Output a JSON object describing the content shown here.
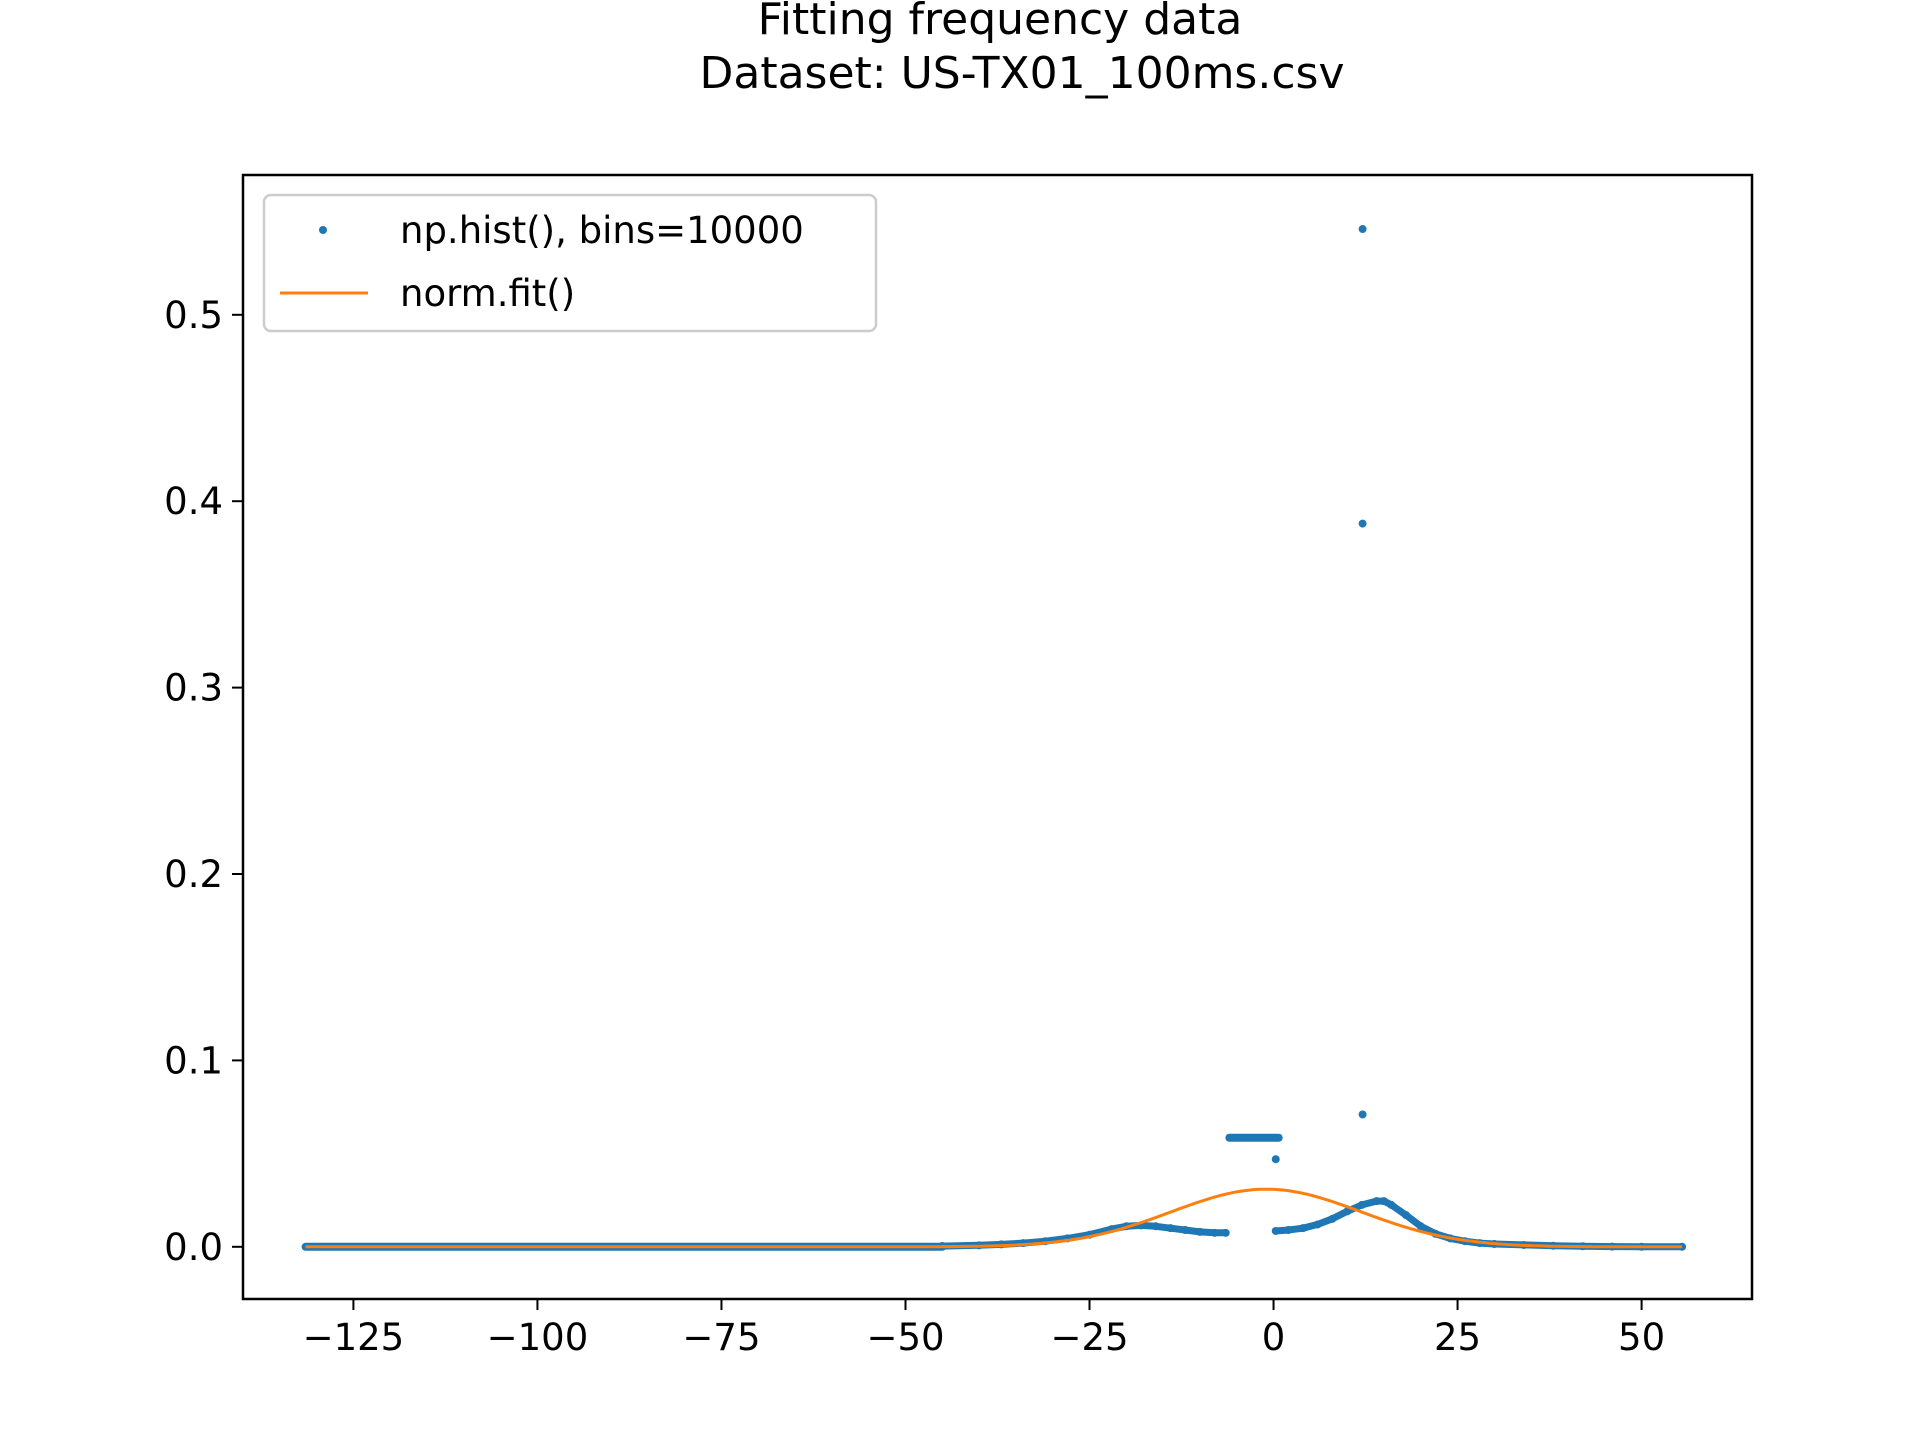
{
  "chart_data": {
    "type": "scatter",
    "title": "Fitting frequency data",
    "subtitle": "Dataset: US-TX01_100ms.csv",
    "xlabel": "",
    "ylabel": "",
    "xlim": [
      -140,
      65
    ],
    "ylim": [
      -0.028,
      0.575
    ],
    "x_ticks": [
      -125,
      -100,
      -75,
      -50,
      -25,
      0,
      25,
      50
    ],
    "x_tick_labels": [
      "−125",
      "−100",
      "−75",
      "−50",
      "−25",
      "0",
      "25",
      "50"
    ],
    "y_ticks": [
      0.0,
      0.1,
      0.2,
      0.3,
      0.4,
      0.5
    ],
    "y_tick_labels": [
      "0.0",
      "0.1",
      "0.2",
      "0.3",
      "0.4",
      "0.5"
    ],
    "grid": false,
    "legend_position": "upper-left",
    "series": [
      {
        "name": "np.hist(), bins=10000",
        "kind": "points",
        "color": "#1f77b4",
        "segments": [
          {
            "x_range": [
              -131.5,
              -45
            ],
            "value": 0.0
          },
          {
            "x_range": [
              -6,
              0.7
            ],
            "value": 0.0585
          }
        ],
        "points": [
          [
            -45,
            0.0004
          ],
          [
            -40,
            0.0008
          ],
          [
            -37,
            0.0013
          ],
          [
            -34,
            0.002
          ],
          [
            -31,
            0.003
          ],
          [
            -28,
            0.0045
          ],
          [
            -25,
            0.0065
          ],
          [
            -22,
            0.0095
          ],
          [
            -20,
            0.011
          ],
          [
            -18,
            0.0115
          ],
          [
            -16,
            0.011
          ],
          [
            -14,
            0.01
          ],
          [
            -12,
            0.009
          ],
          [
            -10,
            0.008
          ],
          [
            -8,
            0.0075
          ],
          [
            -6.5,
            0.0075
          ],
          [
            0.3,
            0.047
          ],
          [
            0.3,
            0.0085
          ],
          [
            2,
            0.009
          ],
          [
            4,
            0.01
          ],
          [
            6,
            0.012
          ],
          [
            8,
            0.015
          ],
          [
            10,
            0.019
          ],
          [
            12,
            0.0225
          ],
          [
            14,
            0.0245
          ],
          [
            15,
            0.0245
          ],
          [
            16,
            0.0225
          ],
          [
            18,
            0.017
          ],
          [
            20,
            0.011
          ],
          [
            22,
            0.007
          ],
          [
            24,
            0.0045
          ],
          [
            26,
            0.003
          ],
          [
            28,
            0.002
          ],
          [
            30,
            0.0015
          ],
          [
            34,
            0.001
          ],
          [
            38,
            0.0006
          ],
          [
            42,
            0.0003
          ],
          [
            46,
            0.0001
          ],
          [
            50,
            0.0
          ],
          [
            55.5,
            0.0
          ],
          [
            12.1,
            0.546
          ],
          [
            12.1,
            0.388
          ],
          [
            12.1,
            0.071
          ]
        ]
      },
      {
        "name": "norm.fit()",
        "kind": "line",
        "color": "#ff7f0e",
        "fit": {
          "mu": -1.0,
          "sigma": 12.9
        },
        "x_range": [
          -131.5,
          55.5
        ]
      }
    ]
  }
}
